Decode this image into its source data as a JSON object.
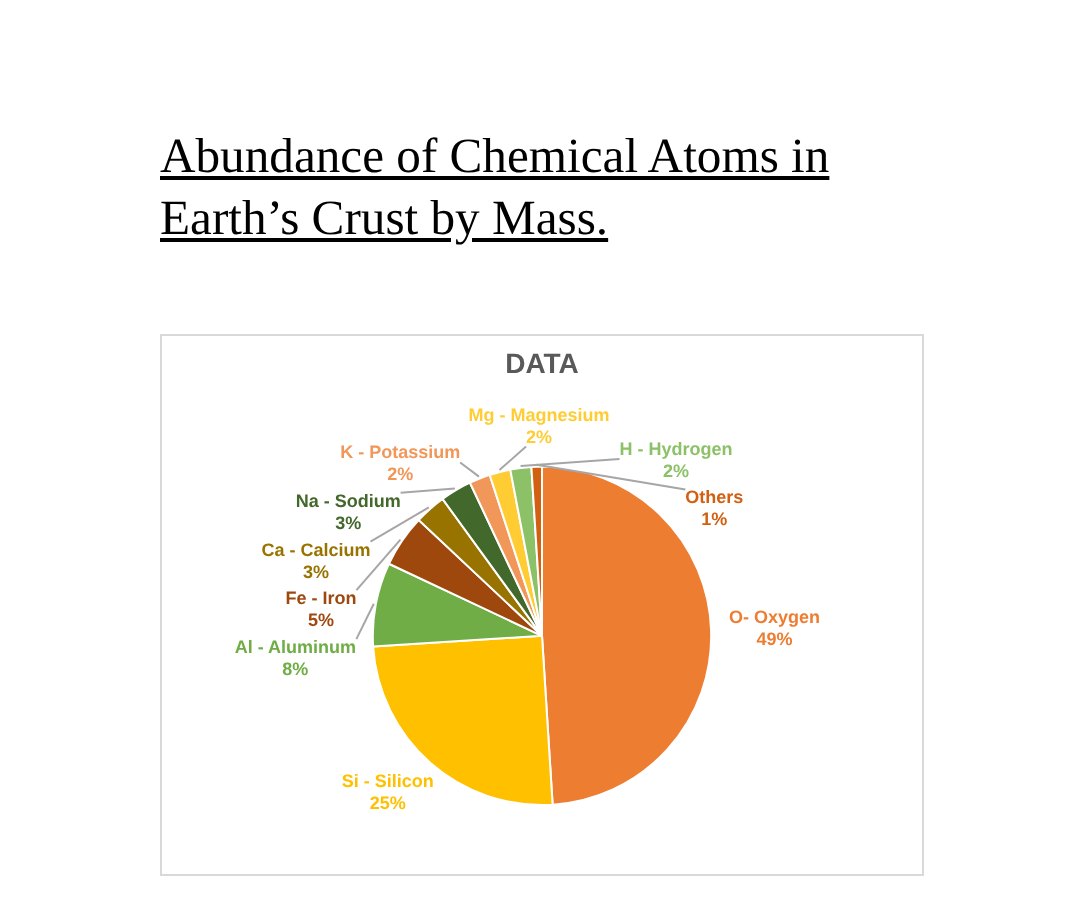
{
  "chart_data": {
    "type": "pie",
    "title": "Abundance of Chemical Atoms in Earth’s Crust by Mass.",
    "subtitle": "DATA",
    "categories": [
      "O- Oxygen",
      "Si - Silicon",
      "Al - Aluminum",
      "Fe - Iron",
      "Ca - Calcium",
      "Na - Sodium",
      "K - Potassium",
      "Mg - Magnesium",
      "H - Hydrogen",
      "Others"
    ],
    "values": [
      49,
      25,
      8,
      5,
      3,
      3,
      2,
      2,
      2,
      1
    ],
    "colors": [
      "#ed7d31",
      "#ffc000",
      "#70ad47",
      "#9e480e",
      "#997300",
      "#43682b",
      "#f1975a",
      "#ffcd33",
      "#8cc168",
      "#d26012"
    ],
    "value_labels": [
      "49%",
      "25%",
      "8%",
      "5%",
      "3%",
      "3%",
      "2%",
      "2%",
      "2%",
      "1%"
    ]
  }
}
